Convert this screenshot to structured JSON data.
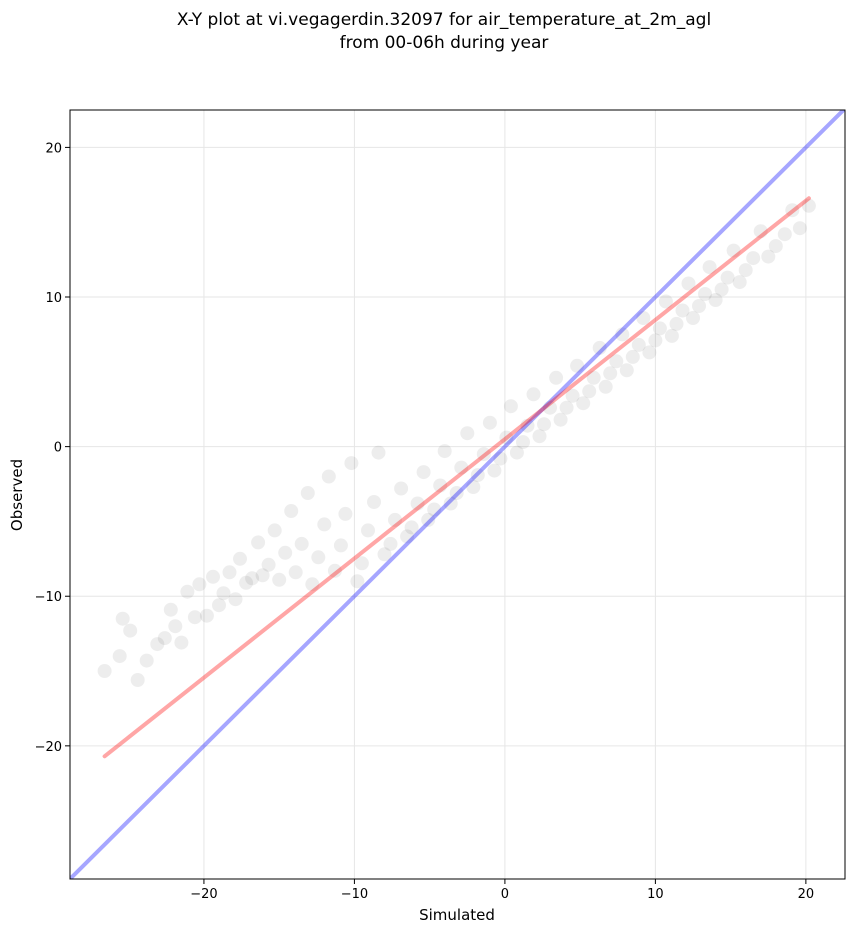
{
  "chart_data": {
    "type": "scatter",
    "title": "X-Y plot at vi.vegagerdin.32097 for air_temperature_at_2m_agl",
    "subtitle": "from 00-06h during year",
    "xlabel": "Simulated",
    "ylabel": "Observed",
    "xlim": [
      -28.9,
      22.6
    ],
    "ylim": [
      -28.9,
      22.5
    ],
    "xticks": [
      -20,
      -10,
      0,
      10,
      20
    ],
    "yticks": [
      -20,
      -10,
      0,
      10,
      20
    ],
    "xtick_labels": [
      "−20",
      "−10",
      "0",
      "10",
      "20"
    ],
    "ytick_labels": [
      "−20",
      "−10",
      "0",
      "10",
      "20"
    ],
    "grid": true,
    "point_color": "#000000",
    "point_opacity": 0.07,
    "points": {
      "x": [
        -26.6,
        -25.6,
        -25.4,
        -24.9,
        -24.4,
        -23.8,
        -23.1,
        -22.6,
        -22.2,
        -21.9,
        -21.5,
        -21.1,
        -20.6,
        -20.3,
        -19.8,
        -19.4,
        -19.0,
        -18.7,
        -18.3,
        -17.9,
        -17.6,
        -17.2,
        -16.8,
        -16.4,
        -16.1,
        -15.7,
        -15.3,
        -15.0,
        -14.6,
        -14.2,
        -13.9,
        -13.5,
        -13.1,
        -12.8,
        -12.4,
        -12.0,
        -11.7,
        -11.3,
        -10.9,
        -10.6,
        -10.2,
        -9.8,
        -9.5,
        -9.1,
        -8.7,
        -8.4,
        -8.0,
        -7.6,
        -7.3,
        -6.9,
        -6.5,
        -6.2,
        -5.8,
        -5.4,
        -5.1,
        -4.7,
        -4.3,
        -4.0,
        -3.6,
        -3.2,
        -2.9,
        -2.5,
        -2.1,
        -1.8,
        -1.4,
        -1.0,
        -0.7,
        -0.3,
        0.1,
        0.4,
        0.8,
        1.2,
        1.5,
        1.9,
        2.3,
        2.6,
        3.0,
        3.4,
        3.7,
        4.1,
        4.5,
        4.8,
        5.2,
        5.6,
        5.9,
        6.3,
        6.7,
        7.0,
        7.4,
        7.8,
        8.1,
        8.5,
        8.9,
        9.2,
        9.6,
        10.0,
        10.3,
        10.7,
        11.1,
        11.4,
        11.8,
        12.2,
        12.5,
        12.9,
        13.3,
        13.6,
        14.0,
        14.4,
        14.8,
        15.2,
        15.6,
        16.0,
        16.5,
        17.0,
        17.5,
        18.0,
        18.6,
        19.1,
        19.6,
        20.2
      ],
      "y": [
        -15.0,
        -14.0,
        -11.5,
        -12.3,
        -15.6,
        -14.3,
        -13.2,
        -12.8,
        -10.9,
        -12.0,
        -13.1,
        -9.7,
        -11.4,
        -9.2,
        -11.3,
        -8.7,
        -10.6,
        -9.8,
        -8.4,
        -10.2,
        -7.5,
        -9.1,
        -8.8,
        -6.4,
        -8.6,
        -7.9,
        -5.6,
        -8.9,
        -7.1,
        -4.3,
        -8.4,
        -6.5,
        -3.1,
        -9.2,
        -7.4,
        -5.2,
        -2.0,
        -8.3,
        -6.6,
        -4.5,
        -1.1,
        -9.0,
        -7.8,
        -5.6,
        -3.7,
        -0.4,
        -7.2,
        -6.5,
        -4.9,
        -2.8,
        -6.0,
        -5.4,
        -3.8,
        -1.7,
        -4.9,
        -4.2,
        -2.6,
        -0.3,
        -3.8,
        -3.1,
        -1.4,
        0.9,
        -2.7,
        -1.9,
        -0.5,
        1.6,
        -1.6,
        -0.8,
        0.6,
        2.7,
        -0.4,
        0.3,
        1.4,
        3.5,
        0.7,
        1.5,
        2.6,
        4.6,
        1.8,
        2.6,
        3.4,
        5.4,
        2.9,
        3.7,
        4.6,
        6.6,
        4.0,
        4.9,
        5.7,
        7.5,
        5.1,
        6.0,
        6.8,
        8.6,
        6.3,
        7.1,
        7.9,
        9.7,
        7.4,
        8.2,
        9.1,
        10.9,
        8.6,
        9.4,
        10.2,
        12.0,
        9.8,
        10.5,
        11.3,
        13.1,
        11.0,
        11.8,
        12.6,
        14.4,
        12.7,
        13.4,
        14.2,
        15.8,
        14.6,
        16.1
      ]
    },
    "reference_lines": [
      {
        "kind": "identity",
        "color": "#0000ff",
        "opacity": 0.35,
        "x": [
          -28.9,
          22.6
        ],
        "y": [
          -28.9,
          22.6
        ]
      },
      {
        "kind": "fit",
        "color": "#ff0000",
        "opacity": 0.35,
        "x": [
          -26.6,
          20.2
        ],
        "y": [
          -20.7,
          16.6
        ]
      }
    ]
  }
}
